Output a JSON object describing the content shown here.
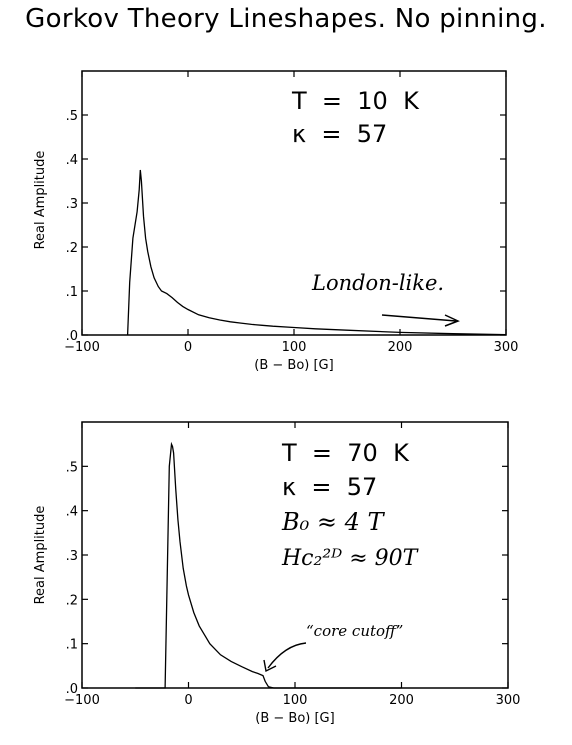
{
  "title": "Gorkov Theory Lineshapes. No pinning.",
  "chart_data": [
    {
      "type": "line",
      "xlabel": "(B − Bo) [G]",
      "ylabel": "Real Amplitude",
      "xlim": [
        -100,
        300
      ],
      "ylim": [
        0,
        0.6
      ],
      "xticks": [
        -100,
        0,
        100,
        200,
        300
      ],
      "xtick_labels": [
        "−100",
        "0",
        "100",
        "200",
        "300"
      ],
      "yticks": [
        0,
        0.1,
        0.2,
        0.3,
        0.4,
        0.5
      ],
      "ytick_labels": [
        ".0",
        ".1",
        ".2",
        ".3",
        ".4",
        ".5"
      ],
      "grid": false,
      "annotations": [
        "T  =  10  K",
        "κ  =  57",
        "London-like."
      ],
      "series": [
        {
          "x": [
            -57,
            -55,
            -52,
            -50,
            -48,
            -46,
            -45,
            -44,
            -42,
            -40,
            -38,
            -35,
            -32,
            -28,
            -25,
            -20,
            -15,
            -10,
            -5,
            0,
            10,
            20,
            30,
            40,
            50,
            60,
            70,
            80,
            100,
            120,
            150,
            200,
            250,
            300
          ],
          "y": [
            0,
            0.12,
            0.22,
            0.25,
            0.28,
            0.33,
            0.375,
            0.35,
            0.27,
            0.22,
            0.19,
            0.155,
            0.13,
            0.11,
            0.1,
            0.094,
            0.085,
            0.074,
            0.065,
            0.058,
            0.046,
            0.039,
            0.034,
            0.03,
            0.027,
            0.024,
            0.022,
            0.02,
            0.017,
            0.014,
            0.011,
            0.006,
            0.003,
            0.001
          ]
        }
      ]
    },
    {
      "type": "line",
      "xlabel": "(B − Bo) [G]",
      "ylabel": "Real Amplitude",
      "xlim": [
        -100,
        300
      ],
      "ylim": [
        0,
        0.6
      ],
      "xticks": [
        -100,
        0,
        100,
        200,
        300
      ],
      "xtick_labels": [
        "−100",
        "0",
        "100",
        "200",
        "300"
      ],
      "yticks": [
        0,
        0.1,
        0.2,
        0.3,
        0.4,
        0.5
      ],
      "ytick_labels": [
        ".0",
        ".1",
        ".2",
        ".3",
        ".4",
        ".5"
      ],
      "grid": false,
      "annotations": [
        "T  =  70  K",
        "κ  =  57",
        "B₀ ≈ 4 T",
        "Hc₂²ᴰ ≈ 90T",
        "“core cutoff”"
      ],
      "series": [
        {
          "x": [
            -50,
            -22,
            -20,
            -18,
            -16,
            -15,
            -14,
            -12,
            -10,
            -8,
            -5,
            -2,
            0,
            5,
            10,
            15,
            20,
            30,
            40,
            50,
            60,
            65,
            70,
            72,
            75,
            80,
            100,
            150,
            200
          ],
          "y": [
            0,
            0,
            0.25,
            0.5,
            0.55,
            0.545,
            0.53,
            0.45,
            0.38,
            0.33,
            0.27,
            0.23,
            0.21,
            0.17,
            0.14,
            0.12,
            0.1,
            0.075,
            0.06,
            0.048,
            0.037,
            0.033,
            0.028,
            0.015,
            0.003,
            0,
            0,
            0,
            0
          ]
        }
      ]
    }
  ]
}
